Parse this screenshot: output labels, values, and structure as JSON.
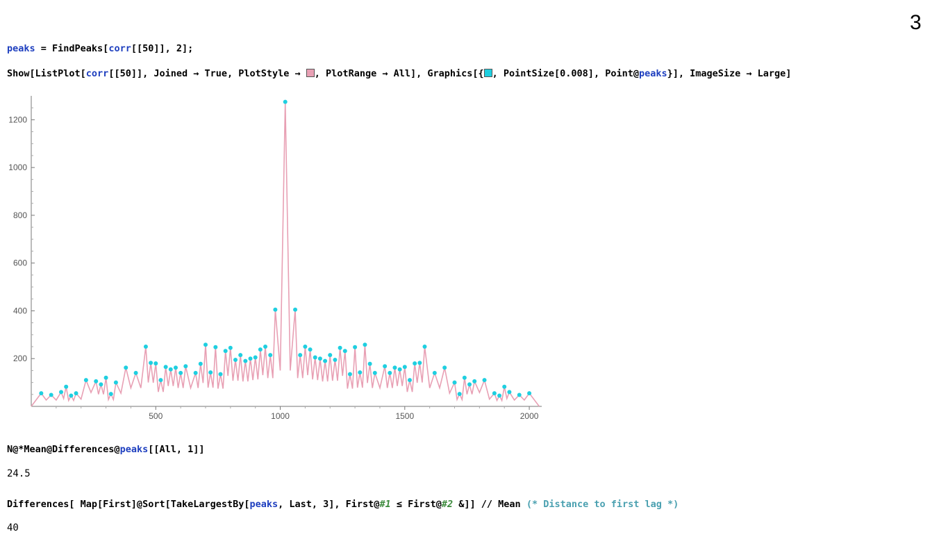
{
  "slide_number": "3",
  "cells": {
    "line1": {
      "var": "peaks",
      "mid": " = FindPeaks[",
      "arg": "corr",
      "tail": "[[50]], 2];"
    },
    "line2": {
      "a": "Show[ListPlot[",
      "b": "corr",
      "c": "[[50]], Joined → True, PlotStyle → ",
      "d": ", PlotRange → All], Graphics[{",
      "e": ", PointSize[0.008], Point@",
      "f": "peaks",
      "g": "}], ImageSize → Large]",
      "swatch1_color": "#e8a0b4",
      "swatch2_color": "#1ecfe0"
    },
    "line3": {
      "a": "N@*Mean@Differences@",
      "b": "peaks",
      "c": "[[All, 1]]"
    },
    "out3": "24.5",
    "line4": {
      "a": "Differences[ Map[First]@Sort[TakeLargestBy[",
      "b": "peaks",
      "c": ", Last, 3], First@",
      "d": "#1",
      "e": " ≤ First@",
      "f": "#2",
      "g": " &]] // Mean ",
      "h": "(* Distance to first lag *)"
    },
    "out4": "40"
  },
  "chart_data": {
    "type": "line",
    "line_color": "#e8a0b4",
    "point_color": "#1ecfe0",
    "xlim": [
      0,
      2050
    ],
    "ylim": [
      0,
      1300
    ],
    "x_ticks": [
      500,
      1000,
      1500,
      2000
    ],
    "y_ticks": [
      200,
      400,
      600,
      800,
      1000,
      1200
    ],
    "peaks": [
      [
        40,
        55
      ],
      [
        80,
        48
      ],
      [
        120,
        60
      ],
      [
        140,
        82
      ],
      [
        160,
        45
      ],
      [
        180,
        55
      ],
      [
        220,
        110
      ],
      [
        260,
        105
      ],
      [
        280,
        92
      ],
      [
        300,
        120
      ],
      [
        320,
        52
      ],
      [
        340,
        100
      ],
      [
        380,
        162
      ],
      [
        420,
        140
      ],
      [
        460,
        250
      ],
      [
        480,
        182
      ],
      [
        500,
        180
      ],
      [
        520,
        110
      ],
      [
        540,
        165
      ],
      [
        560,
        155
      ],
      [
        580,
        162
      ],
      [
        600,
        140
      ],
      [
        620,
        168
      ],
      [
        660,
        140
      ],
      [
        680,
        178
      ],
      [
        700,
        258
      ],
      [
        720,
        142
      ],
      [
        740,
        248
      ],
      [
        760,
        135
      ],
      [
        780,
        232
      ],
      [
        800,
        245
      ],
      [
        820,
        195
      ],
      [
        840,
        215
      ],
      [
        860,
        190
      ],
      [
        880,
        200
      ],
      [
        900,
        205
      ],
      [
        920,
        238
      ],
      [
        940,
        250
      ],
      [
        960,
        215
      ],
      [
        980,
        405
      ],
      [
        1020,
        1275
      ],
      [
        1060,
        405
      ],
      [
        1080,
        215
      ],
      [
        1100,
        250
      ],
      [
        1120,
        238
      ],
      [
        1140,
        205
      ],
      [
        1160,
        200
      ],
      [
        1180,
        190
      ],
      [
        1200,
        215
      ],
      [
        1220,
        195
      ],
      [
        1240,
        245
      ],
      [
        1260,
        232
      ],
      [
        1280,
        135
      ],
      [
        1300,
        248
      ],
      [
        1320,
        142
      ],
      [
        1340,
        258
      ],
      [
        1360,
        178
      ],
      [
        1380,
        140
      ],
      [
        1420,
        168
      ],
      [
        1440,
        140
      ],
      [
        1460,
        162
      ],
      [
        1480,
        155
      ],
      [
        1500,
        165
      ],
      [
        1520,
        110
      ],
      [
        1540,
        180
      ],
      [
        1560,
        182
      ],
      [
        1580,
        250
      ],
      [
        1620,
        140
      ],
      [
        1660,
        162
      ],
      [
        1700,
        100
      ],
      [
        1720,
        52
      ],
      [
        1740,
        120
      ],
      [
        1760,
        92
      ],
      [
        1780,
        105
      ],
      [
        1820,
        110
      ],
      [
        1860,
        55
      ],
      [
        1880,
        45
      ],
      [
        1900,
        82
      ],
      [
        1920,
        60
      ],
      [
        1960,
        48
      ],
      [
        2000,
        55
      ]
    ],
    "grid": false
  }
}
